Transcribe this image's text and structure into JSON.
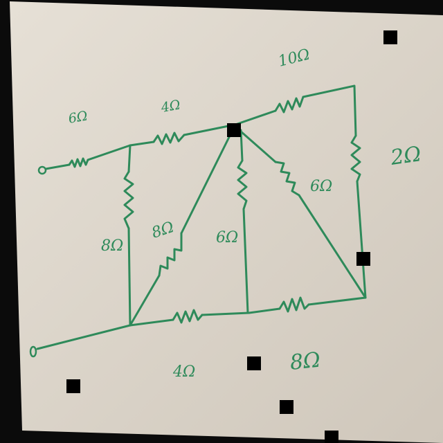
{
  "colors": {
    "ink": "#2e8a5a",
    "paper": "#e6e0d6",
    "paper_shadow": "#cfc7bb",
    "background": "#0b0b0b",
    "marker": "#000000"
  },
  "resistors": {
    "r_input": "6Ω",
    "r_top_mid": "4Ω",
    "r_top_right": "10Ω",
    "r_right_vertical": "2Ω",
    "r_left_shunt": "8Ω",
    "r_diagonal_left": "8Ω",
    "r_center_vertical": "6Ω",
    "r_diagonal_right": "6Ω",
    "r_bottom_mid": "4Ω",
    "r_bottom_right": "8Ω"
  }
}
